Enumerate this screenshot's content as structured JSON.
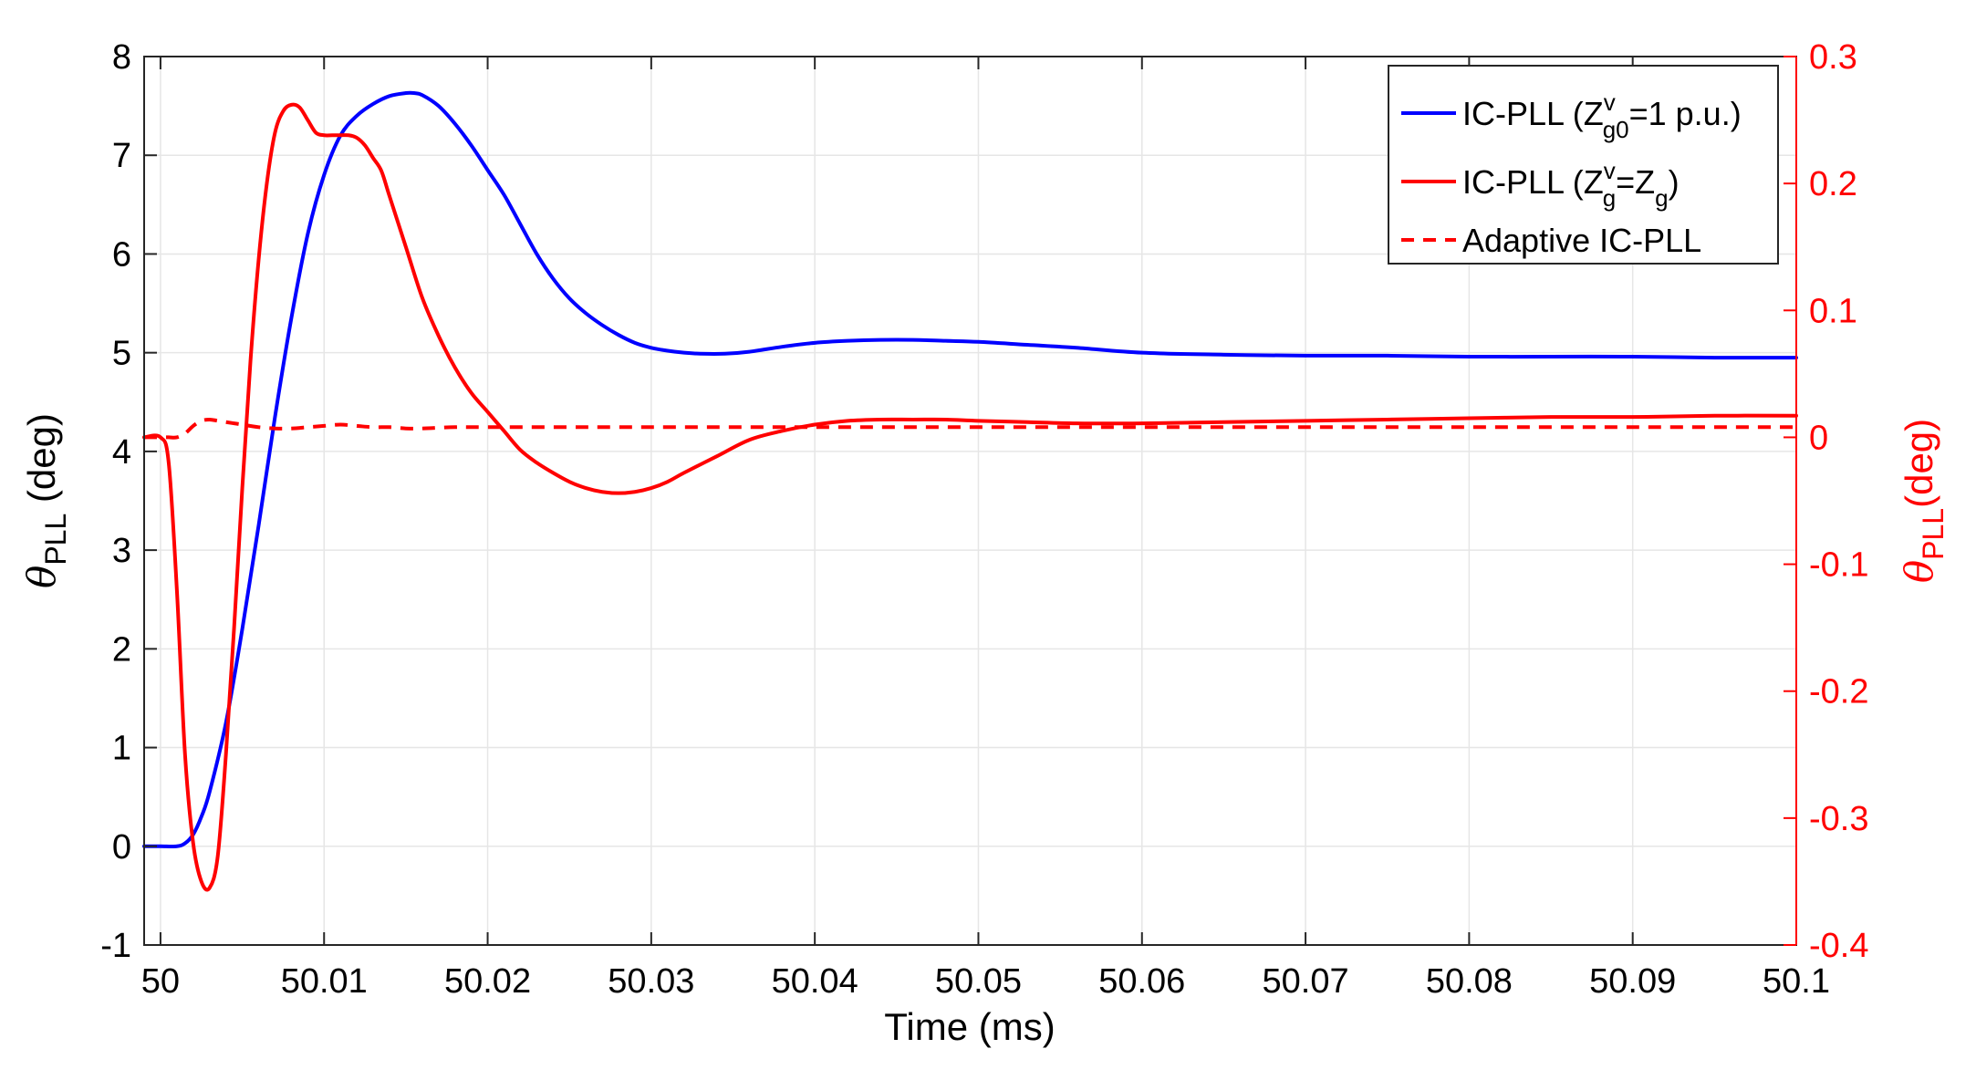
{
  "chart_data": {
    "type": "line",
    "xlabel": "Time (ms)",
    "ylabel_left": {
      "symbol": "θ",
      "sub": "PLL",
      "unit": " (deg)"
    },
    "ylabel_right": {
      "symbol": "θ",
      "sub": "PLL",
      "unit": "(deg)"
    },
    "xlim": [
      49.999,
      50.1
    ],
    "ylim_left": [
      -1,
      8
    ],
    "ylim_right": [
      -0.4,
      0.3
    ],
    "x_ticks": [
      50,
      50.01,
      50.02,
      50.03,
      50.04,
      50.05,
      50.06,
      50.07,
      50.08,
      50.09,
      50.1
    ],
    "x_tick_labels": [
      "50",
      "50.01",
      "50.02",
      "50.03",
      "50.04",
      "50.05",
      "50.06",
      "50.07",
      "50.08",
      "50.09",
      "50.1"
    ],
    "y_left_ticks": [
      -1,
      0,
      1,
      2,
      3,
      4,
      5,
      6,
      7,
      8
    ],
    "y_left_tick_labels": [
      "-1",
      "0",
      "1",
      "2",
      "3",
      "4",
      "5",
      "6",
      "7",
      "8"
    ],
    "y_right_ticks": [
      -0.4,
      -0.3,
      -0.2,
      -0.1,
      0,
      0.1,
      0.2,
      0.3
    ],
    "y_right_tick_labels": [
      "-0.4",
      "-0.3",
      "-0.2",
      "-0.1",
      "0",
      "0.1",
      "0.2",
      "0.3"
    ],
    "grid": true,
    "legend_position": "top-right",
    "colors": {
      "left_axis": "#000000",
      "right_axis": "#ff0000",
      "grid": "#e6e6e6",
      "blue": "#0000ff",
      "red": "#ff0000"
    },
    "series": [
      {
        "legend": {
          "prefix": "IC-PLL (Z",
          "sup": "v",
          "sub": "g0",
          "suffix": "=1 p.u.)"
        },
        "axis": "left",
        "color": "#0000ff",
        "dash": "solid",
        "x": [
          49.999,
          50.0,
          50.001,
          50.0015,
          50.002,
          50.0025,
          50.003,
          50.004,
          50.005,
          50.006,
          50.007,
          50.008,
          50.009,
          50.01,
          50.011,
          50.012,
          50.013,
          50.014,
          50.015,
          50.0155,
          50.016,
          50.017,
          50.018,
          50.019,
          50.02,
          50.021,
          50.022,
          50.023,
          50.024,
          50.025,
          50.026,
          50.027,
          50.028,
          50.029,
          50.03,
          50.031,
          50.032,
          50.033,
          50.0345,
          50.036,
          50.038,
          50.04,
          50.042,
          50.044,
          50.046,
          50.048,
          50.05,
          50.053,
          50.056,
          50.06,
          50.065,
          50.07,
          50.075,
          50.08,
          50.085,
          50.09,
          50.095,
          50.1
        ],
        "y": [
          0.0,
          0.0,
          0.0,
          0.03,
          0.12,
          0.3,
          0.55,
          1.25,
          2.2,
          3.25,
          4.35,
          5.35,
          6.2,
          6.8,
          7.2,
          7.4,
          7.52,
          7.6,
          7.63,
          7.63,
          7.61,
          7.5,
          7.32,
          7.1,
          6.85,
          6.6,
          6.3,
          6.0,
          5.75,
          5.55,
          5.4,
          5.28,
          5.18,
          5.1,
          5.05,
          5.02,
          5.0,
          4.99,
          4.99,
          5.01,
          5.06,
          5.1,
          5.12,
          5.13,
          5.13,
          5.12,
          5.11,
          5.08,
          5.05,
          5.0,
          4.98,
          4.97,
          4.97,
          4.96,
          4.96,
          4.96,
          4.95,
          4.95
        ]
      },
      {
        "legend": {
          "prefix": "IC-PLL (Z",
          "sup": "v",
          "sub": "g",
          "mid": "=Z",
          "sub2": "g",
          "suffix": ")"
        },
        "axis": "right",
        "color": "#ff0000",
        "dash": "solid",
        "x": [
          49.999,
          50.0,
          50.0005,
          50.001,
          50.0015,
          50.002,
          50.0025,
          50.003,
          50.0035,
          50.004,
          50.0045,
          50.005,
          50.0055,
          50.006,
          50.0065,
          50.007,
          50.0075,
          50.008,
          50.0085,
          50.009,
          50.0095,
          50.01,
          50.0105,
          50.011,
          50.0115,
          50.012,
          50.0125,
          50.013,
          50.0135,
          50.014,
          50.015,
          50.016,
          50.017,
          50.018,
          50.019,
          50.02,
          50.021,
          50.022,
          50.023,
          50.024,
          50.025,
          50.026,
          50.027,
          50.028,
          50.029,
          50.03,
          50.031,
          50.032,
          50.034,
          50.036,
          50.038,
          50.04,
          50.042,
          50.044,
          50.046,
          50.048,
          50.05,
          50.053,
          50.056,
          50.06,
          50.065,
          50.07,
          50.075,
          50.08,
          50.085,
          50.09,
          50.095,
          50.1
        ],
        "y": [
          0.0,
          0.0,
          -0.02,
          -0.12,
          -0.25,
          -0.32,
          -0.35,
          -0.355,
          -0.33,
          -0.25,
          -0.15,
          -0.04,
          0.06,
          0.14,
          0.2,
          0.24,
          0.257,
          0.262,
          0.26,
          0.25,
          0.24,
          0.238,
          0.238,
          0.238,
          0.238,
          0.236,
          0.23,
          0.22,
          0.21,
          0.19,
          0.15,
          0.11,
          0.08,
          0.055,
          0.035,
          0.02,
          0.005,
          -0.01,
          -0.02,
          -0.028,
          -0.035,
          -0.04,
          -0.043,
          -0.044,
          -0.043,
          -0.04,
          -0.035,
          -0.028,
          -0.015,
          -0.002,
          0.005,
          0.01,
          0.013,
          0.014,
          0.014,
          0.014,
          0.013,
          0.012,
          0.011,
          0.011,
          0.012,
          0.013,
          0.014,
          0.015,
          0.016,
          0.016,
          0.017,
          0.017
        ]
      },
      {
        "legend": {
          "prefix": "Adaptive IC-PLL"
        },
        "axis": "right",
        "color": "#ff0000",
        "dash": "dashed",
        "x": [
          49.999,
          50.0,
          50.0005,
          50.001,
          50.0015,
          50.002,
          50.0025,
          50.003,
          50.0035,
          50.004,
          50.005,
          50.006,
          50.007,
          50.008,
          50.009,
          50.01,
          50.011,
          50.012,
          50.013,
          50.014,
          50.015,
          50.016,
          50.018,
          50.02,
          50.025,
          50.03,
          50.04,
          50.05,
          50.06,
          50.07,
          50.08,
          50.09,
          50.1
        ],
        "y": [
          0.0,
          0.0,
          0.0,
          0.0,
          0.003,
          0.009,
          0.013,
          0.014,
          0.013,
          0.012,
          0.01,
          0.008,
          0.007,
          0.007,
          0.008,
          0.009,
          0.01,
          0.009,
          0.008,
          0.008,
          0.007,
          0.007,
          0.008,
          0.008,
          0.008,
          0.008,
          0.008,
          0.008,
          0.008,
          0.008,
          0.008,
          0.008,
          0.008
        ]
      }
    ]
  }
}
